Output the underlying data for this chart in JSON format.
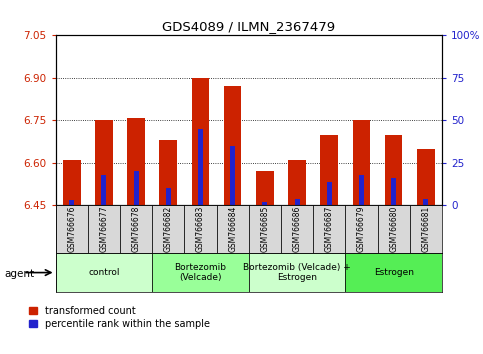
{
  "title": "GDS4089 / ILMN_2367479",
  "samples": [
    "GSM766676",
    "GSM766677",
    "GSM766678",
    "GSM766682",
    "GSM766683",
    "GSM766684",
    "GSM766685",
    "GSM766686",
    "GSM766687",
    "GSM766679",
    "GSM766680",
    "GSM766681"
  ],
  "transformed_counts": [
    6.61,
    6.75,
    6.76,
    6.68,
    6.9,
    6.87,
    6.57,
    6.61,
    6.7,
    6.75,
    6.7,
    6.65
  ],
  "percentile_ranks": [
    3,
    18,
    20,
    10,
    45,
    35,
    2,
    4,
    14,
    18,
    16,
    4
  ],
  "groups": [
    {
      "label": "control",
      "start": 0,
      "end": 3,
      "color": "#ccffcc"
    },
    {
      "label": "Bortezomib\n(Velcade)",
      "start": 3,
      "end": 6,
      "color": "#99ff99"
    },
    {
      "label": "Bortezomib (Velcade) +\nEstrogen",
      "start": 6,
      "end": 9,
      "color": "#ccffcc"
    },
    {
      "label": "Estrogen",
      "start": 9,
      "end": 12,
      "color": "#55ee55"
    }
  ],
  "ylim_left": [
    6.45,
    7.05
  ],
  "ylim_right": [
    0,
    100
  ],
  "yticks_left": [
    6.45,
    6.6,
    6.75,
    6.9,
    7.05
  ],
  "yticks_right": [
    0,
    25,
    50,
    75,
    100
  ],
  "bar_color": "#cc2200",
  "percentile_color": "#2222cc",
  "agent_label": "agent",
  "legend_count_label": "transformed count",
  "legend_pct_label": "percentile rank within the sample",
  "bar_width": 0.55,
  "baseline": 6.45,
  "gridlines": [
    6.6,
    6.75,
    6.9
  ],
  "sample_box_color": "#d8d8d8",
  "chart_bg": "#ffffff"
}
